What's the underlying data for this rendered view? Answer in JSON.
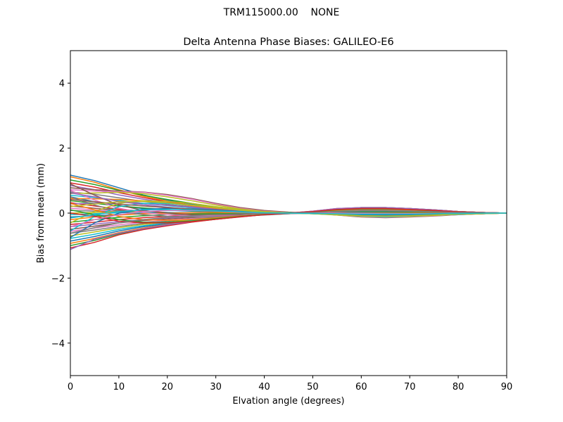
{
  "figure": {
    "suptitle": "TRM115000.00    NONE"
  },
  "chart_data": {
    "type": "line",
    "title": "Delta Antenna Phase Biases: GALILEO-E6",
    "xlabel": "Elvation angle (degrees)",
    "ylabel": "Bias from mean (mm)",
    "xlim": [
      0,
      90
    ],
    "ylim": [
      -5,
      5
    ],
    "xticks": [
      0,
      10,
      20,
      30,
      40,
      50,
      60,
      70,
      80,
      90
    ],
    "yticks": [
      -4,
      -2,
      0,
      2,
      4
    ],
    "ytick_labels": [
      "−4",
      "−2",
      "0",
      "2",
      "4"
    ],
    "grid": false,
    "legend": "none",
    "x": [
      0,
      5,
      10,
      15,
      20,
      25,
      30,
      35,
      40,
      45,
      50,
      55,
      60,
      65,
      70,
      75,
      80,
      85,
      90
    ],
    "palette": [
      "#1f77b4",
      "#ff7f0e",
      "#2ca02c",
      "#d62728",
      "#9467bd",
      "#8c564b",
      "#e377c2",
      "#7f7f7f",
      "#bcbd22",
      "#17becf"
    ],
    "series": [
      {
        "values": [
          1.17,
          1.0,
          0.78,
          0.56,
          0.4,
          0.27,
          0.15,
          0.07,
          0.02,
          0.0,
          -0.02,
          -0.05,
          -0.08,
          -0.1,
          -0.09,
          -0.07,
          -0.04,
          -0.02,
          0.0
        ]
      },
      {
        "values": [
          1.12,
          0.95,
          0.72,
          0.52,
          0.37,
          0.24,
          0.13,
          0.05,
          0.01,
          0.0,
          -0.01,
          -0.04,
          -0.07,
          -0.09,
          -0.08,
          -0.06,
          -0.04,
          -0.02,
          0.0
        ]
      },
      {
        "values": [
          1.02,
          0.88,
          0.7,
          0.55,
          0.42,
          0.3,
          0.18,
          0.09,
          0.03,
          0.01,
          0.0,
          -0.03,
          -0.06,
          -0.08,
          -0.07,
          -0.06,
          -0.03,
          -0.01,
          0.0
        ]
      },
      {
        "values": [
          0.93,
          0.8,
          0.63,
          0.48,
          0.35,
          0.24,
          0.14,
          0.06,
          0.02,
          0.01,
          0.0,
          -0.02,
          -0.05,
          -0.07,
          -0.07,
          -0.05,
          -0.03,
          -0.01,
          0.0
        ]
      },
      {
        "values": [
          0.85,
          0.72,
          0.56,
          0.43,
          0.32,
          0.22,
          0.12,
          0.05,
          0.02,
          0.01,
          0.01,
          -0.01,
          -0.04,
          -0.06,
          -0.06,
          -0.05,
          -0.03,
          -0.01,
          0.0
        ]
      },
      {
        "values": [
          0.78,
          0.72,
          0.68,
          0.65,
          0.57,
          0.45,
          0.3,
          0.17,
          0.08,
          0.03,
          0.0,
          -0.06,
          -0.12,
          -0.14,
          -0.12,
          -0.09,
          -0.05,
          -0.02,
          0.0
        ]
      },
      {
        "values": [
          0.72,
          0.68,
          0.66,
          0.64,
          0.55,
          0.43,
          0.28,
          0.15,
          0.06,
          0.02,
          -0.01,
          -0.06,
          -0.11,
          -0.13,
          -0.11,
          -0.08,
          -0.05,
          -0.02,
          0.0
        ]
      },
      {
        "values": [
          0.65,
          0.58,
          0.47,
          0.36,
          0.27,
          0.19,
          0.11,
          0.05,
          0.02,
          0.01,
          0.01,
          -0.01,
          -0.03,
          -0.05,
          -0.05,
          -0.04,
          -0.02,
          -0.01,
          0.0
        ]
      },
      {
        "values": [
          0.6,
          0.62,
          0.64,
          0.6,
          0.5,
          0.38,
          0.25,
          0.13,
          0.05,
          0.01,
          -0.01,
          -0.05,
          -0.09,
          -0.11,
          -0.1,
          -0.07,
          -0.04,
          -0.02,
          0.0
        ]
      },
      {
        "values": [
          0.55,
          0.48,
          0.39,
          0.3,
          0.23,
          0.16,
          0.1,
          0.05,
          0.02,
          0.01,
          0.01,
          0.0,
          -0.02,
          -0.04,
          -0.04,
          -0.03,
          -0.02,
          -0.01,
          0.0
        ]
      },
      {
        "values": [
          0.5,
          0.35,
          0.22,
          0.14,
          0.09,
          0.06,
          0.03,
          0.01,
          0.0,
          0.0,
          0.01,
          0.02,
          0.02,
          0.01,
          0.0,
          0.0,
          0.0,
          0.0,
          0.0
        ]
      },
      {
        "values": [
          0.45,
          0.44,
          0.42,
          0.38,
          0.31,
          0.23,
          0.15,
          0.08,
          0.03,
          0.01,
          0.0,
          -0.03,
          -0.06,
          -0.08,
          -0.07,
          -0.05,
          -0.03,
          -0.01,
          0.0
        ]
      },
      {
        "values": [
          0.38,
          0.3,
          0.22,
          0.16,
          0.11,
          0.07,
          0.04,
          0.02,
          0.01,
          0.01,
          0.01,
          0.02,
          0.02,
          0.01,
          0.01,
          0.0,
          0.0,
          0.0,
          0.0
        ]
      },
      {
        "values": [
          0.32,
          0.22,
          0.12,
          0.06,
          0.02,
          0.0,
          -0.01,
          -0.02,
          -0.02,
          -0.01,
          0.0,
          0.03,
          0.05,
          0.06,
          0.05,
          0.03,
          0.02,
          0.01,
          0.0
        ]
      },
      {
        "values": [
          0.28,
          0.3,
          0.34,
          0.3,
          0.24,
          0.18,
          0.11,
          0.06,
          0.02,
          0.0,
          -0.01,
          -0.03,
          -0.05,
          -0.06,
          -0.06,
          -0.04,
          -0.03,
          -0.01,
          0.0
        ]
      },
      {
        "values": [
          0.22,
          0.15,
          0.08,
          0.03,
          0.0,
          -0.02,
          -0.03,
          -0.03,
          -0.02,
          -0.01,
          0.0,
          0.04,
          0.07,
          0.08,
          0.07,
          0.05,
          0.03,
          0.01,
          0.0
        ]
      },
      {
        "values": [
          0.15,
          0.1,
          0.05,
          0.02,
          0.0,
          -0.01,
          -0.02,
          -0.02,
          -0.01,
          0.0,
          0.01,
          0.03,
          0.05,
          0.05,
          0.04,
          0.03,
          0.02,
          0.01,
          0.0
        ]
      },
      {
        "values": [
          0.08,
          0.06,
          0.04,
          0.02,
          0.01,
          0.0,
          -0.01,
          -0.01,
          -0.01,
          0.0,
          0.0,
          0.02,
          0.03,
          0.03,
          0.03,
          0.02,
          0.01,
          0.0,
          0.0
        ]
      },
      {
        "values": [
          0.0,
          0.02,
          0.05,
          0.04,
          0.02,
          0.0,
          -0.02,
          -0.03,
          -0.03,
          -0.01,
          0.01,
          0.04,
          0.06,
          0.06,
          0.05,
          0.03,
          0.02,
          0.01,
          0.0
        ]
      },
      {
        "values": [
          -0.05,
          -0.02,
          0.01,
          0.02,
          0.02,
          0.01,
          0.0,
          -0.01,
          -0.01,
          0.0,
          0.01,
          0.02,
          0.03,
          0.03,
          0.02,
          0.02,
          0.01,
          0.0,
          0.0
        ]
      },
      {
        "values": [
          -0.12,
          -0.08,
          -0.04,
          -0.01,
          0.01,
          0.01,
          0.0,
          -0.01,
          -0.01,
          0.0,
          0.01,
          0.02,
          0.03,
          0.03,
          0.02,
          0.02,
          0.01,
          0.0,
          0.0
        ]
      },
      {
        "values": [
          -0.2,
          -0.12,
          -0.06,
          -0.02,
          0.0,
          0.01,
          0.01,
          0.0,
          0.0,
          0.0,
          0.0,
          0.0,
          0.0,
          0.0,
          0.0,
          0.0,
          0.0,
          0.0,
          0.0
        ]
      },
      {
        "values": [
          -0.28,
          -0.2,
          -0.13,
          -0.08,
          -0.05,
          -0.03,
          -0.02,
          -0.01,
          0.0,
          0.01,
          0.02,
          0.04,
          0.05,
          0.05,
          0.04,
          0.03,
          0.02,
          0.01,
          0.0
        ]
      },
      {
        "values": [
          -0.35,
          -0.28,
          -0.2,
          -0.14,
          -0.1,
          -0.07,
          -0.05,
          -0.03,
          -0.01,
          0.0,
          0.02,
          0.05,
          0.07,
          0.07,
          0.06,
          0.04,
          0.02,
          0.01,
          0.0
        ]
      },
      {
        "values": [
          -0.42,
          -0.34,
          -0.26,
          -0.2,
          -0.15,
          -0.11,
          -0.08,
          -0.05,
          -0.02,
          0.0,
          0.02,
          0.06,
          0.09,
          0.1,
          0.08,
          0.05,
          0.03,
          0.01,
          0.0
        ]
      },
      {
        "values": [
          -0.5,
          -0.4,
          -0.3,
          -0.23,
          -0.18,
          -0.14,
          -0.1,
          -0.06,
          -0.03,
          0.0,
          0.03,
          0.08,
          0.11,
          0.12,
          0.1,
          0.06,
          0.03,
          0.01,
          0.0
        ]
      },
      {
        "values": [
          -0.56,
          -0.46,
          -0.36,
          -0.28,
          -0.22,
          -0.17,
          -0.12,
          -0.07,
          -0.03,
          0.0,
          0.04,
          0.09,
          0.12,
          0.13,
          0.11,
          0.07,
          0.04,
          0.01,
          0.0
        ]
      },
      {
        "values": [
          -0.62,
          -0.52,
          -0.41,
          -0.32,
          -0.25,
          -0.19,
          -0.13,
          -0.08,
          -0.04,
          0.0,
          0.04,
          0.1,
          0.13,
          0.14,
          0.12,
          0.08,
          0.04,
          0.02,
          0.0
        ]
      },
      {
        "values": [
          -0.7,
          -0.58,
          -0.45,
          -0.35,
          -0.28,
          -0.21,
          -0.15,
          -0.09,
          -0.04,
          0.0,
          0.05,
          0.11,
          0.14,
          0.15,
          0.12,
          0.08,
          0.04,
          0.02,
          0.0
        ]
      },
      {
        "values": [
          -0.78,
          -0.65,
          -0.5,
          -0.39,
          -0.3,
          -0.23,
          -0.16,
          -0.1,
          -0.05,
          0.0,
          0.05,
          0.12,
          0.15,
          0.15,
          0.13,
          0.09,
          0.05,
          0.02,
          0.0
        ]
      },
      {
        "values": [
          -0.86,
          -0.72,
          -0.55,
          -0.42,
          -0.33,
          -0.25,
          -0.17,
          -0.1,
          -0.05,
          0.0,
          0.05,
          0.12,
          0.16,
          0.16,
          0.13,
          0.09,
          0.05,
          0.02,
          0.0
        ]
      },
      {
        "values": [
          -0.93,
          -0.78,
          -0.6,
          -0.46,
          -0.35,
          -0.26,
          -0.18,
          -0.11,
          -0.05,
          0.0,
          0.05,
          0.13,
          0.16,
          0.16,
          0.14,
          0.09,
          0.05,
          0.02,
          0.0
        ]
      },
      {
        "values": [
          -1.0,
          -0.84,
          -0.64,
          -0.49,
          -0.37,
          -0.27,
          -0.19,
          -0.11,
          -0.05,
          0.0,
          0.05,
          0.13,
          0.17,
          0.17,
          0.14,
          0.1,
          0.05,
          0.02,
          0.0
        ]
      },
      {
        "values": [
          -1.07,
          -0.9,
          -0.67,
          -0.51,
          -0.39,
          -0.28,
          -0.19,
          -0.12,
          -0.05,
          0.0,
          0.06,
          0.14,
          0.17,
          0.17,
          0.14,
          0.1,
          0.05,
          0.02,
          0.0
        ]
      },
      {
        "values": [
          -1.12,
          -0.8,
          -0.62,
          -0.48,
          -0.36,
          -0.26,
          -0.18,
          -0.11,
          -0.05,
          0.0,
          0.06,
          0.14,
          0.17,
          0.17,
          0.14,
          0.1,
          0.05,
          0.02,
          0.0
        ]
      },
      {
        "values": [
          0.9,
          0.55,
          0.25,
          0.08,
          0.0,
          -0.05,
          -0.07,
          -0.07,
          -0.05,
          -0.02,
          0.01,
          0.06,
          0.09,
          0.09,
          0.08,
          0.05,
          0.03,
          0.01,
          0.0
        ]
      },
      {
        "values": [
          0.7,
          0.4,
          0.15,
          0.02,
          -0.05,
          -0.08,
          -0.09,
          -0.08,
          -0.05,
          -0.02,
          0.01,
          0.06,
          0.09,
          0.1,
          0.08,
          0.05,
          0.03,
          0.01,
          0.0
        ]
      },
      {
        "values": [
          0.5,
          0.25,
          0.05,
          -0.05,
          -0.1,
          -0.12,
          -0.11,
          -0.09,
          -0.06,
          -0.02,
          0.02,
          0.07,
          0.1,
          0.1,
          0.09,
          0.06,
          0.03,
          0.01,
          0.0
        ]
      },
      {
        "values": [
          -0.3,
          0.05,
          0.3,
          0.38,
          0.36,
          0.3,
          0.2,
          0.11,
          0.04,
          0.0,
          -0.02,
          -0.06,
          -0.1,
          -0.12,
          -0.1,
          -0.07,
          -0.04,
          -0.02,
          0.0
        ]
      },
      {
        "values": [
          -0.55,
          -0.1,
          0.2,
          0.3,
          0.3,
          0.25,
          0.17,
          0.09,
          0.03,
          0.0,
          -0.02,
          -0.05,
          -0.09,
          -0.11,
          -0.09,
          -0.06,
          -0.04,
          -0.01,
          0.0
        ]
      },
      {
        "values": [
          -0.75,
          -0.3,
          0.0,
          0.12,
          0.15,
          0.13,
          0.1,
          0.05,
          0.02,
          0.0,
          -0.01,
          -0.03,
          -0.05,
          -0.06,
          -0.05,
          -0.04,
          -0.02,
          -0.01,
          0.0
        ]
      },
      {
        "values": [
          0.3,
          0.1,
          -0.1,
          -0.2,
          -0.22,
          -0.2,
          -0.15,
          -0.09,
          -0.04,
          0.0,
          0.04,
          0.09,
          0.12,
          0.12,
          0.1,
          0.07,
          0.04,
          0.01,
          0.0
        ]
      },
      {
        "values": [
          0.1,
          -0.05,
          -0.2,
          -0.28,
          -0.28,
          -0.24,
          -0.17,
          -0.1,
          -0.04,
          0.0,
          0.04,
          0.1,
          0.13,
          0.13,
          0.11,
          0.07,
          0.04,
          0.01,
          0.0
        ]
      },
      {
        "values": [
          0.0,
          -0.1,
          -0.25,
          -0.3,
          -0.3,
          -0.26,
          -0.19,
          -0.11,
          -0.05,
          0.0,
          0.05,
          0.11,
          0.14,
          0.14,
          0.11,
          0.08,
          0.04,
          0.02,
          0.0
        ]
      },
      {
        "values": [
          0.62,
          0.5,
          0.36,
          0.26,
          0.18,
          0.12,
          0.07,
          0.03,
          0.01,
          0.0,
          0.0,
          0.0,
          -0.01,
          -0.02,
          -0.02,
          -0.02,
          -0.01,
          0.0,
          0.0
        ]
      },
      {
        "values": [
          0.42,
          0.35,
          0.28,
          0.22,
          0.17,
          0.12,
          0.08,
          0.04,
          0.02,
          0.0,
          0.0,
          -0.01,
          -0.02,
          -0.03,
          -0.03,
          -0.02,
          -0.01,
          0.0,
          0.0
        ]
      },
      {
        "values": [
          -0.42,
          -0.2,
          -0.05,
          0.05,
          0.08,
          0.08,
          0.06,
          0.03,
          0.01,
          0.0,
          0.0,
          0.0,
          -0.01,
          -0.02,
          -0.02,
          -0.01,
          -0.01,
          0.0,
          0.0
        ]
      },
      {
        "values": [
          -0.62,
          -0.45,
          -0.3,
          -0.2,
          -0.13,
          -0.08,
          -0.05,
          -0.03,
          -0.01,
          0.0,
          0.02,
          0.05,
          0.07,
          0.07,
          0.06,
          0.04,
          0.02,
          0.01,
          0.0
        ]
      },
      {
        "values": [
          0.2,
          0.28,
          0.35,
          0.36,
          0.32,
          0.25,
          0.17,
          0.09,
          0.03,
          0.0,
          -0.02,
          -0.05,
          -0.08,
          -0.09,
          -0.08,
          -0.06,
          -0.03,
          -0.01,
          0.0
        ]
      },
      {
        "values": [
          -0.15,
          -0.05,
          0.05,
          0.1,
          0.11,
          0.1,
          0.07,
          0.04,
          0.01,
          0.0,
          -0.01,
          -0.02,
          -0.03,
          -0.03,
          -0.03,
          -0.02,
          -0.01,
          0.0,
          0.0
        ]
      }
    ]
  }
}
